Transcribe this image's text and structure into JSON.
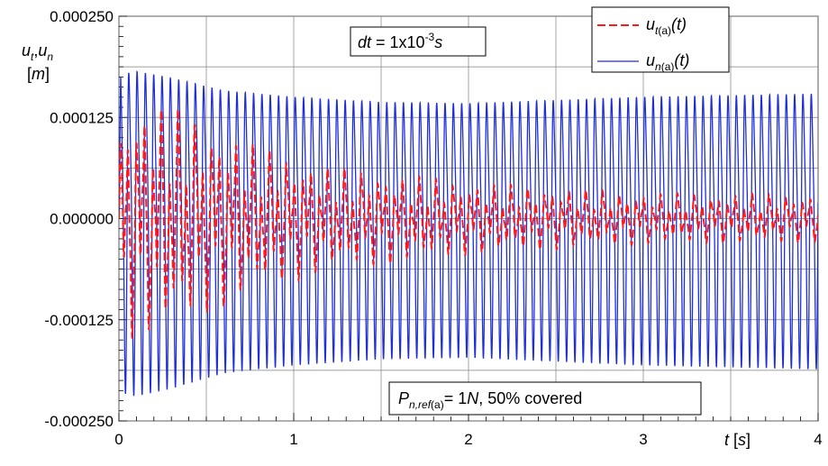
{
  "chart_data": {
    "type": "line",
    "title": "",
    "xlim": [
      0,
      4
    ],
    "ylim": [
      -0.00025,
      0.00025
    ],
    "x_ticks": [
      0,
      1,
      2,
      3,
      4
    ],
    "x_tick_labels": [
      "0",
      "1",
      "2",
      "3",
      "4"
    ],
    "y_ticks": [
      0.00025,
      0.000125,
      0,
      -0.000125,
      -0.00025
    ],
    "y_tick_labels": [
      "0.000250",
      "0.000125",
      "0.000000",
      "-0.000125",
      "-0.000250"
    ],
    "grid": true,
    "legend_position": "top-right",
    "xlabel": {
      "var": "t",
      "unit": "s"
    },
    "ylabel": {
      "vars": "u",
      "sub1": "t",
      "sep": ",",
      "sub2": "n",
      "unit": "m"
    },
    "annotations": {
      "dt": {
        "var": "dt",
        "text": " = 1x10",
        "exp": "-3",
        "unit": "s"
      },
      "load": {
        "var": "P",
        "sub": "n,ref",
        "subtag": "(a)",
        "value": "= 1",
        "unit": "N",
        "rest": ",   50% covered"
      }
    },
    "series": [
      {
        "name": "u_t(a)(t)",
        "label": {
          "var": "u",
          "sub": "t",
          "tag": "(a)",
          "arg": "(t)"
        },
        "color": "#ff1a1a",
        "style": "dashed",
        "frequency_hz": 21,
        "envelope": {
          "t": [
            0,
            0.05,
            0.3,
            0.5,
            0.8,
            1.2,
            2.0,
            3.0,
            4.0
          ],
          "amp": [
            0.000145,
            0.00015,
            0.00014,
            0.00012,
            9e-05,
            6.5e-05,
            4.5e-05,
            3.2e-05,
            3e-05
          ]
        }
      },
      {
        "name": "u_n(a)(t)",
        "label": {
          "var": "u",
          "sub": "n",
          "tag": "(a)",
          "arg": "(t)"
        },
        "color": "#1f2fd6",
        "style": "solid",
        "frequency_hz": 21,
        "envelope": {
          "t": [
            0,
            0.1,
            0.3,
            0.6,
            1.0,
            1.5,
            2.0,
            3.0,
            4.0
          ],
          "amp": [
            0.000225,
            0.00023,
            0.00022,
            0.0002,
            0.00019,
            0.000182,
            0.00018,
            0.00019,
            0.000195
          ]
        }
      }
    ]
  }
}
